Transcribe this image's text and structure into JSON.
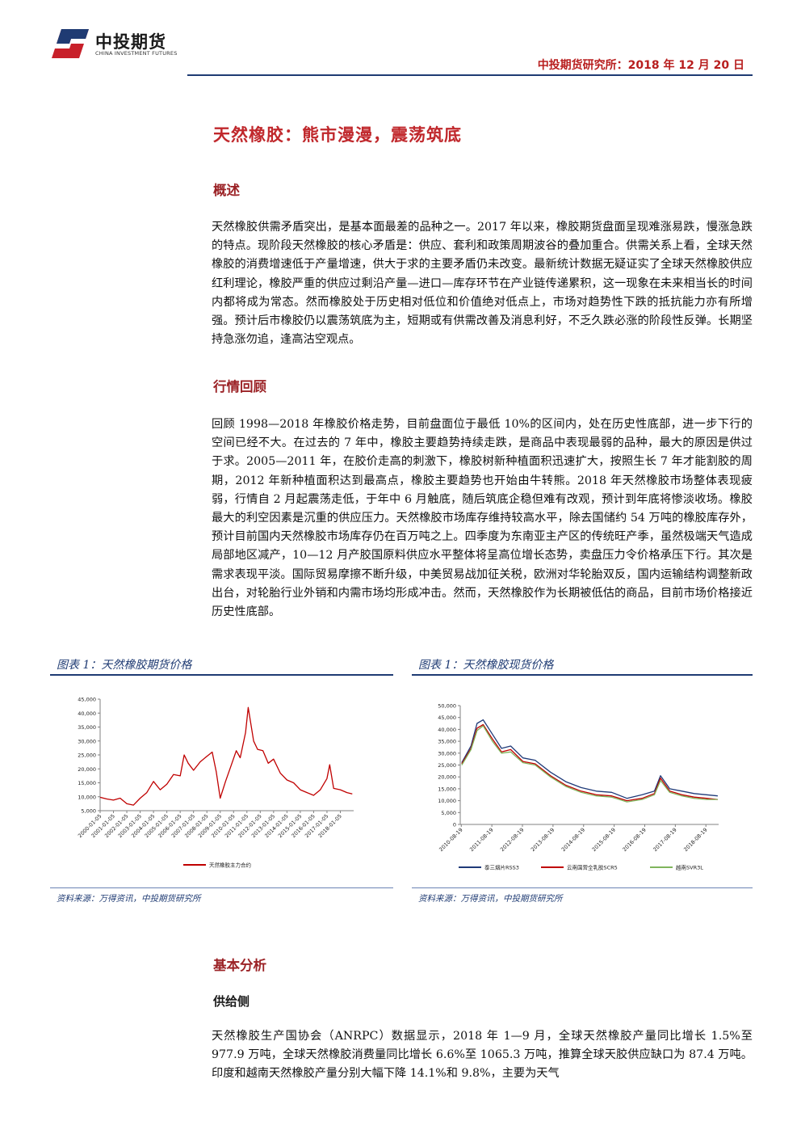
{
  "header": {
    "company_cn": "中投期货",
    "company_en": "CHINA INVESTMENT FUTURES",
    "right_text": "中投期货研究所：2018 年 12 月 20 日"
  },
  "title": "天然橡胶：熊市漫漫，震荡筑底",
  "sections": {
    "overview_heading": "概述",
    "overview_text": "天然橡胶供需矛盾突出，是基本面最差的品种之一。2017 年以来，橡胶期货盘面呈现难涨易跌，慢涨急跌的特点。现阶段天然橡胶的核心矛盾是：供应、套利和政策周期波谷的叠加重合。供需关系上看，全球天然橡胶的消费增速低于产量增速，供大于求的主要矛盾仍未改变。最新统计数据无疑证实了全球天然橡胶供应红利理论，橡胶严重的供应过剩沿产量—进口—库存环节在产业链传递累积，这一现象在未来相当长的时间内都将成为常态。然而橡胶处于历史相对低位和价值绝对低点上，市场对趋势性下跌的抵抗能力亦有所增强。预计后市橡胶仍以震荡筑底为主，短期或有供需改善及消息利好，不乏久跌必涨的阶段性反弹。长期坚持急涨勿追，逢高沽空观点。",
    "review_heading": "行情回顾",
    "review_text": "回顾 1998—2018 年橡胶价格走势，目前盘面位于最低 10%的区间内，处在历史性底部，进一步下行的空间已经不大。在过去的 7 年中，橡胶主要趋势持续走跌，是商品中表现最弱的品种，最大的原因是供过于求。2005—2011 年，在胶价走高的刺激下，橡胶树新种植面积迅速扩大，按照生长 7 年才能割胶的周期，2012 年新种植面积达到最高点，橡胶主要趋势也开始由牛转熊。2018 年天然橡胶市场整体表现疲弱，行情自 2 月起震荡走低，于年中 6 月触底，随后筑底企稳但难有改观，预计到年底将惨淡收场。橡胶最大的利空因素是沉重的供应压力。天然橡胶市场库存维持较高水平，除去国储约 54 万吨的橡胶库存外，预计目前国内天然橡胶市场库存仍在百万吨之上。四季度为东南亚主产区的传统旺产季，虽然极端天气造成局部地区减产，10—12 月产胶国原料供应水平整体将呈高位增长态势，卖盘压力令价格承压下行。其次是需求表现平淡。国际贸易摩擦不断升级，中美贸易战加征关税，欧洲对华轮胎双反，国内运输结构调整新政出台，对轮胎行业外销和内需市场均形成冲击。然而，天然橡胶作为长期被低估的商品，目前市场价格接近历史性底部。",
    "basic_heading": "基本分析",
    "supply_heading": "供给侧",
    "supply_text": "天然橡胶生产国协会（ANRPC）数据显示，2018 年 1—9 月，全球天然橡胶产量同比增长 1.5%至 977.9 万吨，全球天然橡胶消费量同比增长 6.6%至 1065.3 万吨，推算全球天胶供应缺口为 87.4 万吨。印度和越南天然橡胶产量分别大幅下降 14.1%和 9.8%，主要为天气"
  },
  "figures": {
    "left_caption": "图表 1：天然橡胶期货价格",
    "right_caption": "图表 1：天然橡胶现货价格",
    "left_source": "资料来源：万得资讯，中投期货研究所",
    "right_source": "资料来源：万得资讯，中投期货研究所"
  },
  "chart_data": [
    {
      "type": "line",
      "y_ticks": [
        "45,000",
        "40,000",
        "35,000",
        "30,000",
        "25,000",
        "20,000",
        "15,000",
        "10,000",
        "5,000"
      ],
      "ylim": [
        5000,
        45000
      ],
      "x_ticks": [
        "2000-01-05",
        "2001-01-05",
        "2002-01-05",
        "2003-01-05",
        "2004-01-05",
        "2005-01-05",
        "2006-01-05",
        "2007-01-05",
        "2008-01-05",
        "2009-01-05",
        "2010-01-05",
        "2011-01-05",
        "2012-01-05",
        "2013-01-05",
        "2014-01-05",
        "2015-01-05",
        "2016-01-05",
        "2017-01-05",
        "2018-01-05"
      ],
      "color": "#c00000",
      "series": [
        {
          "name": "天然橡胶主力合约",
          "x": [
            2000.0,
            2000.5,
            2001.0,
            2001.5,
            2002.0,
            2002.5,
            2003.0,
            2003.5,
            2004.0,
            2004.5,
            2005.0,
            2005.5,
            2006.0,
            2006.3,
            2006.6,
            2007.0,
            2007.5,
            2008.0,
            2008.4,
            2008.7,
            2009.0,
            2009.4,
            2009.8,
            2010.2,
            2010.5,
            2010.9,
            2011.1,
            2011.5,
            2011.8,
            2012.2,
            2012.6,
            2013.0,
            2013.5,
            2014.0,
            2014.5,
            2015.0,
            2015.5,
            2016.0,
            2016.5,
            2017.0,
            2017.2,
            2017.5,
            2018.0,
            2018.5,
            2018.9
          ],
          "values": [
            9800,
            9200,
            8800,
            9500,
            7500,
            7000,
            9500,
            11500,
            15500,
            12500,
            14500,
            18000,
            17500,
            25000,
            22000,
            19500,
            22500,
            24500,
            26000,
            19000,
            9500,
            15500,
            21000,
            26500,
            24000,
            33000,
            42000,
            30000,
            27000,
            26500,
            22000,
            23500,
            18500,
            16000,
            15000,
            12500,
            11500,
            10500,
            12500,
            16500,
            21500,
            13000,
            12500,
            11500,
            11000
          ]
        }
      ]
    },
    {
      "type": "line",
      "y_ticks": [
        "50,000",
        "45,000",
        "40,000",
        "35,000",
        "30,000",
        "25,000",
        "20,000",
        "15,000",
        "10,000",
        "5,000",
        "0"
      ],
      "ylim": [
        0,
        50000
      ],
      "x_ticks": [
        "2010-08-19",
        "2011-08-19",
        "2012-08-19",
        "2013-08-19",
        "2014-08-19",
        "2015-08-19",
        "2016-08-19",
        "2017-08-19",
        "2018-08-19"
      ],
      "series": [
        {
          "name": "泰三烟片RSS3",
          "color": "#1f3a78",
          "x": [
            2010.6,
            2010.9,
            2011.1,
            2011.3,
            2011.6,
            2011.9,
            2012.2,
            2012.6,
            2013.0,
            2013.5,
            2014.0,
            2014.5,
            2015.0,
            2015.5,
            2016.0,
            2016.5,
            2016.9,
            2017.1,
            2017.4,
            2017.8,
            2018.2,
            2018.6,
            2018.97
          ],
          "values": [
            26000,
            33000,
            42500,
            44000,
            38000,
            32000,
            33000,
            28000,
            27000,
            22000,
            18000,
            15500,
            14000,
            13500,
            11000,
            12500,
            14000,
            20500,
            15000,
            14000,
            13000,
            12500,
            12000
          ]
        },
        {
          "name": "云南国营全乳胶SCR5",
          "color": "#c00000",
          "x": [
            2010.6,
            2010.9,
            2011.1,
            2011.3,
            2011.6,
            2011.9,
            2012.2,
            2012.6,
            2013.0,
            2013.5,
            2014.0,
            2014.5,
            2015.0,
            2015.5,
            2016.0,
            2016.5,
            2016.9,
            2017.1,
            2017.4,
            2017.8,
            2018.2,
            2018.6,
            2018.97
          ],
          "values": [
            25500,
            32000,
            40500,
            42000,
            36000,
            30500,
            31500,
            26500,
            25500,
            20500,
            16500,
            14000,
            12500,
            12000,
            10000,
            11000,
            13000,
            19500,
            14000,
            12500,
            11500,
            11000,
            10500
          ]
        },
        {
          "name": "越南SVR3L",
          "color": "#7fb55c",
          "x": [
            2010.6,
            2010.9,
            2011.1,
            2011.3,
            2011.6,
            2011.9,
            2012.2,
            2012.6,
            2013.0,
            2013.5,
            2014.0,
            2014.5,
            2015.0,
            2015.5,
            2016.0,
            2016.5,
            2016.9,
            2017.1,
            2017.4,
            2017.8,
            2018.2,
            2018.6,
            2018.97
          ],
          "values": [
            25000,
            31500,
            39500,
            41500,
            35000,
            30000,
            30500,
            26000,
            25000,
            20000,
            16000,
            13500,
            12000,
            11500,
            9500,
            10500,
            12500,
            18500,
            13500,
            12000,
            11000,
            10500,
            10500
          ]
        }
      ]
    }
  ]
}
